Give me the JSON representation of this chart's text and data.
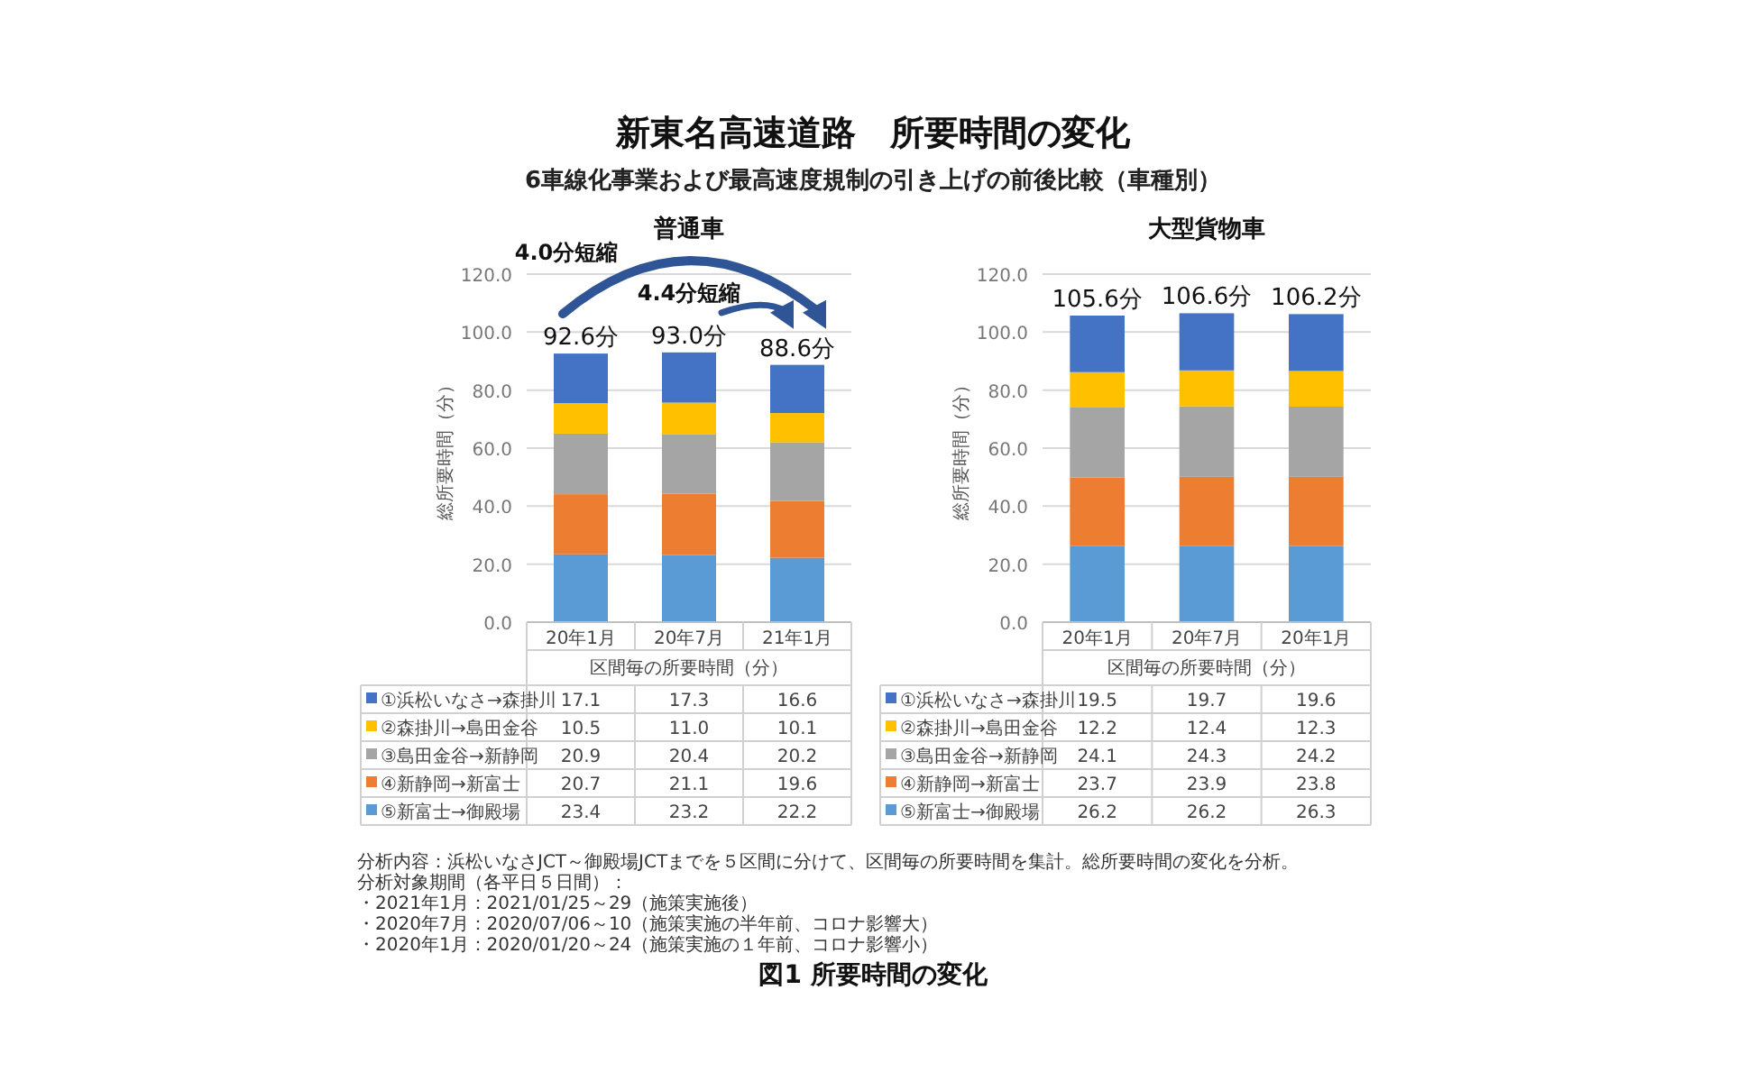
{
  "chart_data": [
    {
      "type": "other",
      "title": "新東名高速道路　所要時間の変化",
      "subtitle": "6車線化事業および最高速度規制の引き上げの前後比較（車種別）",
      "annotations": [
        "分析内容：浜松いなさJCT～御殿場JCTまでを５区間に分けて、区間毎の所要時間を集計。総所要時間の変化を分析。",
        "分析対象期間（各平日５日間）：",
        "・2021年1月：2021/01/25～29（施策実施後）",
        "・2020年7月：2020/07/06～10（施策実施の半年前、コロナ影響大）",
        "・2020年1月：2020/01/20～24（施策実施の１年前、コロナ影響小）",
        "図1 所要時間の変化"
      ]
    },
    {
      "type": "bar",
      "stacked": true,
      "title": "普通車",
      "ylabel": "総所要時間（分）",
      "xlabel": "区間毎の所要時間（分）",
      "categories": [
        "20年1月",
        "20年7月",
        "21年1月"
      ],
      "ylim": [
        0,
        120
      ],
      "yticks": [
        {
          "value": 0,
          "label": "0.0"
        },
        {
          "value": 20,
          "label": "20.0"
        },
        {
          "value": 40,
          "label": "40.0"
        },
        {
          "value": 60,
          "label": "60.0"
        },
        {
          "value": 80,
          "label": "80.0"
        },
        {
          "value": 100,
          "label": "100.0"
        },
        {
          "value": 120,
          "label": "120.0"
        }
      ],
      "grid": "y",
      "legend": "bottom",
      "totals": [
        "92.6分",
        "93.0分",
        "88.6分"
      ],
      "annotations": [
        "4.0分短縮",
        "4.4分短縮"
      ],
      "series": [
        {
          "name": "⑤新富士→御殿場",
          "color": "#5b9bd5",
          "values": [
            23.4,
            23.2,
            22.2
          ],
          "value_labels": [
            "23.4",
            "23.2",
            "22.2"
          ]
        },
        {
          "name": "④新静岡→新富士",
          "color": "#ed7d31",
          "values": [
            20.7,
            21.1,
            19.6
          ],
          "value_labels": [
            "20.7",
            "21.1",
            "19.6"
          ]
        },
        {
          "name": "③島田金谷→新静岡",
          "color": "#a5a5a5",
          "values": [
            20.9,
            20.4,
            20.2
          ],
          "value_labels": [
            "20.9",
            "20.4",
            "20.2"
          ]
        },
        {
          "name": "②森掛川→島田金谷",
          "color": "#ffc000",
          "values": [
            10.5,
            11.0,
            10.1
          ],
          "value_labels": [
            "10.5",
            "11.0",
            "10.1"
          ]
        },
        {
          "name": "①浜松いなさ→森掛川",
          "color": "#4472c4",
          "values": [
            17.1,
            17.3,
            16.6
          ],
          "value_labels": [
            "17.1",
            "17.3",
            "16.6"
          ]
        }
      ]
    },
    {
      "type": "bar",
      "stacked": true,
      "title": "大型貨物車",
      "ylabel": "総所要時間（分）",
      "xlabel": "区間毎の所要時間（分）",
      "categories": [
        "20年1月",
        "20年7月",
        "20年1月"
      ],
      "ylim": [
        0,
        120
      ],
      "yticks": [
        {
          "value": 0,
          "label": "0.0"
        },
        {
          "value": 20,
          "label": "20.0"
        },
        {
          "value": 40,
          "label": "40.0"
        },
        {
          "value": 60,
          "label": "60.0"
        },
        {
          "value": 80,
          "label": "80.0"
        },
        {
          "value": 100,
          "label": "100.0"
        },
        {
          "value": 120,
          "label": "120.0"
        }
      ],
      "grid": "y",
      "legend": "bottom",
      "totals": [
        "105.6分",
        "106.6分",
        "106.2分"
      ],
      "series": [
        {
          "name": "⑤新富士→御殿場",
          "color": "#5b9bd5",
          "values": [
            26.2,
            26.2,
            26.3
          ],
          "value_labels": [
            "26.2",
            "26.2",
            "26.3"
          ]
        },
        {
          "name": "④新静岡→新富士",
          "color": "#ed7d31",
          "values": [
            23.7,
            23.9,
            23.8
          ],
          "value_labels": [
            "23.7",
            "23.9",
            "23.8"
          ]
        },
        {
          "name": "③島田金谷→新静岡",
          "color": "#a5a5a5",
          "values": [
            24.1,
            24.3,
            24.2
          ],
          "value_labels": [
            "24.1",
            "24.3",
            "24.2"
          ]
        },
        {
          "name": "②森掛川→島田金谷",
          "color": "#ffc000",
          "values": [
            12.2,
            12.4,
            12.3
          ],
          "value_labels": [
            "12.2",
            "12.4",
            "12.3"
          ]
        },
        {
          "name": "①浜松いなさ→森掛川",
          "color": "#4472c4",
          "values": [
            19.5,
            19.7,
            19.6
          ],
          "value_labels": [
            "19.5",
            "19.7",
            "19.6"
          ]
        }
      ]
    }
  ]
}
